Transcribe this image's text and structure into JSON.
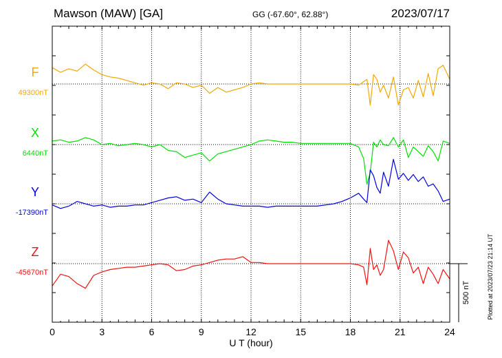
{
  "header": {
    "station": "Mawson (MAW)  [GA]",
    "coords": "GG (-67.60°,  62.88°)",
    "date": "2023/07/17"
  },
  "footer": {
    "xlabel": "U T (hour)",
    "plotted": "Plotted at 2023/07/23 21:14 UT",
    "scale": "500 nT"
  },
  "colors": {
    "F": "#f0a800",
    "X": "#00e000",
    "Y": "#0000e0",
    "Z": "#f01010"
  },
  "chart_data": {
    "type": "line",
    "title": "Mawson (MAW)  [GA]",
    "xlabel": "U T (hour)",
    "xlim": [
      0,
      24
    ],
    "x_ticks": [
      0,
      3,
      6,
      9,
      12,
      15,
      18,
      21,
      24
    ],
    "y_scale_bar_nT": 500,
    "grid": true,
    "series": [
      {
        "name": "F",
        "baseline_label": "49300nT",
        "baseline_nT": 49300,
        "x": [
          0,
          0.5,
          1,
          1.5,
          2,
          2.5,
          3,
          3.5,
          4,
          4.5,
          5,
          5.5,
          6,
          6.5,
          7,
          7.5,
          8,
          8.5,
          9,
          9.5,
          10,
          10.5,
          11,
          11.5,
          12,
          12.5,
          13,
          13.5,
          14,
          14.5,
          15,
          15.5,
          16,
          16.5,
          17,
          17.5,
          18,
          18.5,
          18.8,
          19,
          19.2,
          19.4,
          19.6,
          19.8,
          20,
          20.3,
          20.6,
          20.9,
          21.2,
          21.5,
          21.8,
          22.1,
          22.4,
          22.7,
          23,
          23.3,
          23.6,
          24
        ],
        "values": [
          49440,
          49400,
          49430,
          49410,
          49470,
          49420,
          49380,
          49360,
          49350,
          49330,
          49310,
          49290,
          49310,
          49300,
          49260,
          49310,
          49300,
          49270,
          49290,
          49220,
          49270,
          49230,
          49250,
          49270,
          49300,
          49310,
          49300,
          49300,
          49300,
          49300,
          49300,
          49300,
          49300,
          49300,
          49300,
          49300,
          49300,
          49290,
          49320,
          49340,
          49120,
          49380,
          49340,
          49230,
          49290,
          49180,
          49360,
          49120,
          49250,
          49270,
          49180,
          49330,
          49190,
          49390,
          49200,
          49430,
          49460,
          49340
        ]
      },
      {
        "name": "X",
        "baseline_label": "6440nT",
        "baseline_nT": 6440,
        "x": [
          0,
          0.5,
          1,
          1.5,
          2,
          2.5,
          3,
          3.5,
          4,
          4.5,
          5,
          5.5,
          6,
          6.5,
          7,
          7.5,
          8,
          8.5,
          9,
          9.5,
          10,
          10.5,
          11,
          11.5,
          12,
          12.5,
          13,
          13.5,
          14,
          14.5,
          15,
          15.5,
          16,
          16.5,
          17,
          17.5,
          18,
          18.5,
          18.8,
          19,
          19.2,
          19.4,
          19.6,
          19.8,
          20,
          20.3,
          20.6,
          20.9,
          21.2,
          21.5,
          21.8,
          22.1,
          22.4,
          22.7,
          23,
          23.3,
          23.6,
          24
        ],
        "values": [
          6470,
          6480,
          6460,
          6470,
          6500,
          6480,
          6440,
          6450,
          6430,
          6440,
          6450,
          6440,
          6420,
          6440,
          6390,
          6380,
          6330,
          6350,
          6370,
          6300,
          6360,
          6380,
          6400,
          6420,
          6440,
          6470,
          6480,
          6470,
          6460,
          6460,
          6450,
          6450,
          6450,
          6450,
          6450,
          6450,
          6450,
          6420,
          6320,
          6100,
          6200,
          6460,
          6420,
          6480,
          6440,
          6430,
          6500,
          6420,
          6480,
          6330,
          6420,
          6380,
          6340,
          6430,
          6380,
          6300,
          6470,
          6450
        ]
      },
      {
        "name": "Y",
        "baseline_label": "-17390nT",
        "baseline_nT": -17390,
        "x": [
          0,
          0.5,
          1,
          1.5,
          2,
          2.5,
          3,
          3.5,
          4,
          4.5,
          5,
          5.5,
          6,
          6.5,
          7,
          7.5,
          8,
          8.5,
          9,
          9.5,
          10,
          10.5,
          11,
          11.5,
          12,
          12.5,
          13,
          13.5,
          14,
          14.5,
          15,
          15.5,
          16,
          16.5,
          17,
          17.5,
          18,
          18.5,
          18.8,
          19,
          19.2,
          19.4,
          19.6,
          19.8,
          20,
          20.3,
          20.6,
          20.9,
          21.2,
          21.5,
          21.8,
          22.1,
          22.4,
          22.7,
          23,
          23.3,
          23.6,
          24
        ],
        "values": [
          -17400,
          -17430,
          -17410,
          -17370,
          -17390,
          -17410,
          -17400,
          -17420,
          -17410,
          -17410,
          -17400,
          -17400,
          -17380,
          -17360,
          -17340,
          -17330,
          -17360,
          -17350,
          -17380,
          -17290,
          -17350,
          -17390,
          -17400,
          -17410,
          -17410,
          -17410,
          -17420,
          -17410,
          -17410,
          -17410,
          -17410,
          -17410,
          -17410,
          -17400,
          -17390,
          -17370,
          -17340,
          -17300,
          -17350,
          -17380,
          -17100,
          -17150,
          -17250,
          -17300,
          -17120,
          -17240,
          -17010,
          -17180,
          -17130,
          -17190,
          -17140,
          -17200,
          -17160,
          -17240,
          -17220,
          -17280,
          -17370,
          -17350
        ]
      },
      {
        "name": "Z",
        "baseline_label": "-45670nT",
        "baseline_nT": -45670,
        "x": [
          0,
          0.5,
          1,
          1.5,
          2,
          2.5,
          3,
          3.5,
          4,
          4.5,
          5,
          5.5,
          6,
          6.5,
          7,
          7.5,
          8,
          8.5,
          9,
          9.5,
          10,
          10.5,
          11,
          11.5,
          12,
          12.5,
          13,
          13.5,
          14,
          14.5,
          15,
          15.5,
          16,
          16.5,
          17,
          17.5,
          18,
          18.5,
          18.8,
          19,
          19.2,
          19.4,
          19.6,
          19.8,
          20,
          20.3,
          20.6,
          20.9,
          21.2,
          21.5,
          21.8,
          22.1,
          22.4,
          22.7,
          23,
          23.3,
          23.6,
          24
        ],
        "values": [
          -45860,
          -45760,
          -45780,
          -45840,
          -45880,
          -45770,
          -45740,
          -45720,
          -45710,
          -45700,
          -45700,
          -45690,
          -45680,
          -45670,
          -45680,
          -45730,
          -45720,
          -45690,
          -45680,
          -45660,
          -45640,
          -45630,
          -45630,
          -45610,
          -45660,
          -45660,
          -45670,
          -45670,
          -45670,
          -45670,
          -45670,
          -45670,
          -45670,
          -45670,
          -45670,
          -45670,
          -45670,
          -45680,
          -45700,
          -45850,
          -45540,
          -45720,
          -45680,
          -45770,
          -45720,
          -45470,
          -45560,
          -45720,
          -45570,
          -45620,
          -45750,
          -45700,
          -45840,
          -45700,
          -45760,
          -45840,
          -45720,
          -45800
        ]
      }
    ]
  }
}
